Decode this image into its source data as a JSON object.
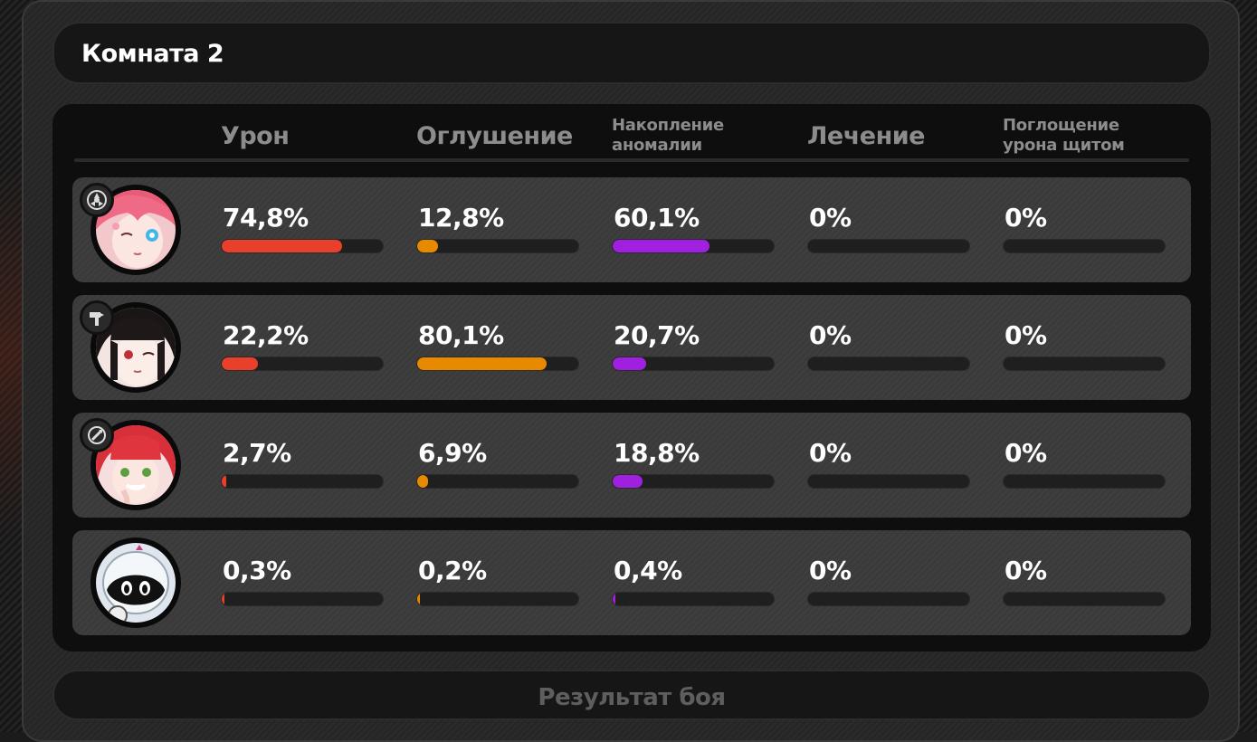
{
  "window": {
    "title": "Комната 2"
  },
  "colors": {
    "damage": "#e8402a",
    "stun": "#e88a00",
    "anomaly": "#a020e0",
    "healing": "#3a3a3a",
    "shield": "#3a3a3a"
  },
  "columns": [
    {
      "key": "damage",
      "label": "Урон"
    },
    {
      "key": "stun",
      "label": "Оглушение"
    },
    {
      "key": "anomaly",
      "label_line1": "Накопление",
      "label_line2": "аномалии"
    },
    {
      "key": "healing",
      "label": "Лечение"
    },
    {
      "key": "shield",
      "label_line1": "Поглощение",
      "label_line2": "урона щитом"
    }
  ],
  "rows": [
    {
      "avatar": "pink-haired-agent-avatar-icon",
      "badge": "anomaly-role-icon",
      "damage": {
        "text": "74,8%",
        "value": 0.748
      },
      "stun": {
        "text": "12,8%",
        "value": 0.128
      },
      "anomaly": {
        "text": "60,1%",
        "value": 0.601
      },
      "healing": {
        "text": "0%",
        "value": 0
      },
      "shield": {
        "text": "0%",
        "value": 0
      }
    },
    {
      "avatar": "black-haired-agent-avatar-icon",
      "badge": "stun-role-icon",
      "damage": {
        "text": "22,2%",
        "value": 0.222
      },
      "stun": {
        "text": "80,1%",
        "value": 0.801
      },
      "anomaly": {
        "text": "20,7%",
        "value": 0.207
      },
      "healing": {
        "text": "0%",
        "value": 0
      },
      "shield": {
        "text": "0%",
        "value": 0
      }
    },
    {
      "avatar": "red-haired-agent-avatar-icon",
      "badge": "support-role-icon",
      "damage": {
        "text": "2,7%",
        "value": 0.027
      },
      "stun": {
        "text": "6,9%",
        "value": 0.069
      },
      "anomaly": {
        "text": "18,8%",
        "value": 0.188
      },
      "healing": {
        "text": "0%",
        "value": 0
      },
      "shield": {
        "text": "0%",
        "value": 0
      }
    },
    {
      "avatar": "bangboo-robot-avatar-icon",
      "badge": "",
      "damage": {
        "text": "0,3%",
        "value": 0.003
      },
      "stun": {
        "text": "0,2%",
        "value": 0.002
      },
      "anomaly": {
        "text": "0,4%",
        "value": 0.004
      },
      "healing": {
        "text": "0%",
        "value": 0
      },
      "shield": {
        "text": "0%",
        "value": 0
      }
    }
  ],
  "footer": {
    "label": "Результат боя"
  }
}
